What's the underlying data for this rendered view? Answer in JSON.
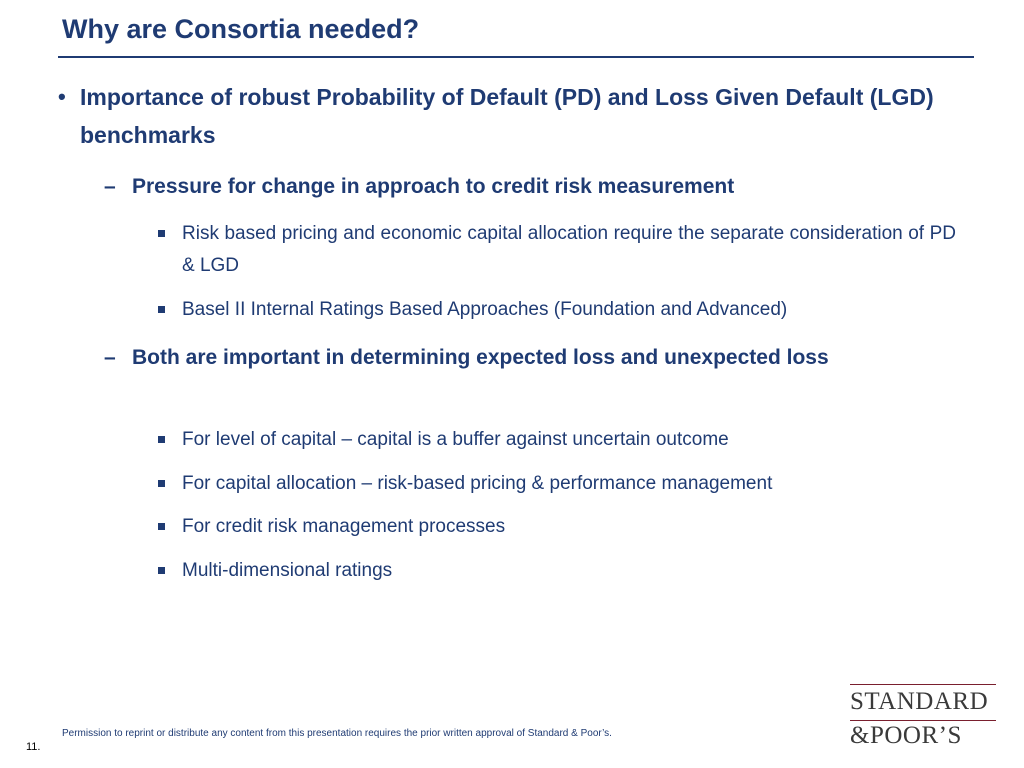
{
  "slide": {
    "title": "Why are Consortia needed?",
    "bullet_main": {
      "mark": "•",
      "text": "Importance of robust Probability of Default (PD) and Loss Given Default (LGD) benchmarks"
    },
    "sub1": {
      "mark": "–",
      "text": "Pressure for change in approach to credit risk measurement",
      "items": [
        "Risk based pricing and economic capital allocation require the separate consideration of PD & LGD",
        "Basel II  Internal Ratings Based Approaches (Foundation and Advanced)"
      ]
    },
    "sub2": {
      "mark": "–",
      "text": "Both are important in determining expected loss and unexpected loss",
      "items": [
        "For level of capital – capital is a buffer against uncertain outcome",
        "For capital allocation – risk-based pricing & performance management",
        "For credit risk management processes",
        "Multi-dimensional ratings"
      ]
    },
    "footer_note": "Permission to reprint or distribute any content from this presentation requires the prior written approval of Standard & Poor’s.",
    "page_number": "11."
  },
  "logo": {
    "line1": "STANDARD",
    "line2": "&POOR’S",
    "colors": {
      "text": "#3a3a3a",
      "rule": "#7a1f2e"
    }
  },
  "colors": {
    "primary": "#1f3b73"
  }
}
